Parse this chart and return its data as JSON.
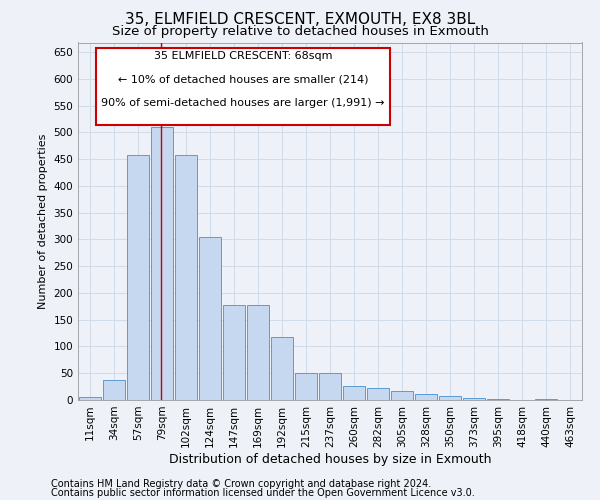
{
  "title": "35, ELMFIELD CRESCENT, EXMOUTH, EX8 3BL",
  "subtitle": "Size of property relative to detached houses in Exmouth",
  "xlabel": "Distribution of detached houses by size in Exmouth",
  "ylabel": "Number of detached properties",
  "categories": [
    "11sqm",
    "34sqm",
    "57sqm",
    "79sqm",
    "102sqm",
    "124sqm",
    "147sqm",
    "169sqm",
    "192sqm",
    "215sqm",
    "237sqm",
    "260sqm",
    "282sqm",
    "305sqm",
    "328sqm",
    "350sqm",
    "373sqm",
    "395sqm",
    "418sqm",
    "440sqm",
    "463sqm"
  ],
  "values": [
    5,
    37,
    457,
    511,
    457,
    305,
    178,
    178,
    117,
    50,
    50,
    27,
    22,
    17,
    12,
    8,
    3,
    1,
    0,
    1,
    0
  ],
  "bar_color": "#c5d8f0",
  "bar_edge_color": "#5b9bd5",
  "grid_color": "#d0dcea",
  "background_color": "#eef2f8",
  "annotation_box_color": "#cc0000",
  "annotation_line_color": "#cc0000",
  "annotation_text_line1": "35 ELMFIELD CRESCENT: 68sqm",
  "annotation_text_line2": "← 10% of detached houses are smaller (214)",
  "annotation_text_line3": "90% of semi-detached houses are larger (1,991) →",
  "red_line_x": 2.97,
  "ylim": [
    0,
    668
  ],
  "yticks": [
    0,
    50,
    100,
    150,
    200,
    250,
    300,
    350,
    400,
    450,
    500,
    550,
    600,
    650
  ],
  "title_fontsize": 11,
  "subtitle_fontsize": 9.5,
  "xlabel_fontsize": 9,
  "ylabel_fontsize": 8,
  "tick_fontsize": 7.5,
  "annot_fontsize": 8,
  "footer_fontsize": 7
}
